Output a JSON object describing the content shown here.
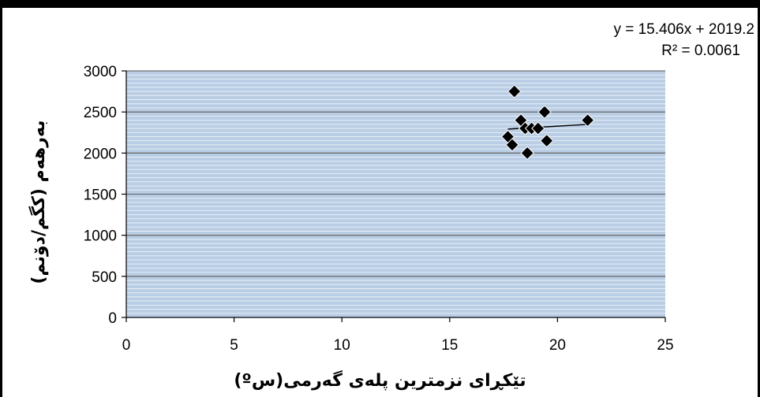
{
  "chart_data": {
    "type": "scatter",
    "title": "",
    "xlabel": "تێکڕای نزمترین پلەی گەرمی(سº)",
    "ylabel": "بەرهەم (کگم/دۆنم)",
    "xlim": [
      0,
      25
    ],
    "ylim": [
      0,
      3000
    ],
    "xticks": [
      0,
      5,
      10,
      15,
      20,
      25
    ],
    "yticks": [
      0,
      500,
      1000,
      1500,
      2000,
      2500,
      3000
    ],
    "grid": true,
    "plot_background": "#B9CDE5",
    "major_grid_color": "#6E6E6E",
    "minor_grid_color": "#E8EEF7",
    "marker_color": "#000000",
    "series": [
      {
        "x": [
          17.7,
          17.9,
          18.0,
          18.3,
          18.5,
          18.6,
          18.8,
          19.1,
          19.4,
          19.5,
          21.4
        ],
        "y": [
          2200,
          2100,
          2750,
          2400,
          2300,
          2000,
          2300,
          2300,
          2500,
          2150,
          2400
        ]
      }
    ],
    "trendline": {
      "slope": 15.406,
      "intercept": 2019.2,
      "x_range": [
        17.7,
        21.4
      ],
      "equation": "y = 15.406x + 2019.2",
      "r_squared": "R² = 0.0061"
    }
  }
}
